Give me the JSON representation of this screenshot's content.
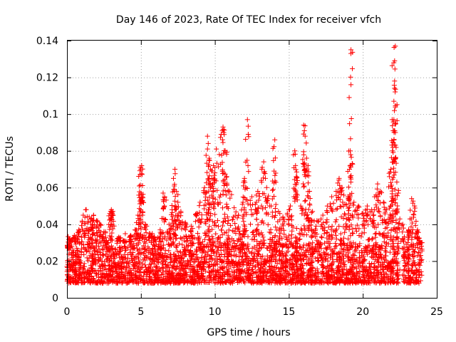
{
  "chart_data": {
    "type": "scatter",
    "title": "Day 146 of 2023, Rate Of TEC Index for receiver vfch",
    "xlabel": "GPS time / hours",
    "ylabel": "ROTI / TECUs",
    "xlim": [
      0,
      25
    ],
    "ylim": [
      0,
      0.14
    ],
    "xticks": [
      0,
      5,
      10,
      15,
      20,
      25
    ],
    "yticks": [
      0,
      0.02,
      0.04,
      0.06,
      0.08,
      0.1,
      0.12,
      0.14
    ],
    "xtick_labels": [
      "0",
      "5",
      "10",
      "15",
      "20",
      "25"
    ],
    "ytick_labels": [
      "0",
      "0.02",
      "0.04",
      "0.06",
      "0.08",
      "0.1",
      "0.12",
      "0.14"
    ],
    "grid": true,
    "marker": "+",
    "color": "#ff0000",
    "x_range_hours": [
      0,
      24
    ],
    "dense_band": {
      "low": 0.008,
      "high": 0.03
    },
    "series": [
      {
        "name": "ROTI",
        "points": [
          [
            0.1,
            0.027
          ],
          [
            0.2,
            0.032
          ],
          [
            0.5,
            0.034
          ],
          [
            0.8,
            0.037
          ],
          [
            1.1,
            0.045
          ],
          [
            1.3,
            0.048
          ],
          [
            1.5,
            0.044
          ],
          [
            1.7,
            0.04
          ],
          [
            1.8,
            0.045
          ],
          [
            2.0,
            0.042
          ],
          [
            2.2,
            0.04
          ],
          [
            2.5,
            0.036
          ],
          [
            2.7,
            0.03
          ],
          [
            2.95,
            0.047
          ],
          [
            3.0,
            0.048
          ],
          [
            3.1,
            0.047
          ],
          [
            3.5,
            0.033
          ],
          [
            3.9,
            0.031
          ],
          [
            4.3,
            0.034
          ],
          [
            4.6,
            0.037
          ],
          [
            4.8,
            0.045
          ],
          [
            4.95,
            0.071
          ],
          [
            5.0,
            0.07
          ],
          [
            5.05,
            0.072
          ],
          [
            5.0,
            0.057
          ],
          [
            5.1,
            0.055
          ],
          [
            5.3,
            0.04
          ],
          [
            5.6,
            0.035
          ],
          [
            5.9,
            0.033
          ],
          [
            6.3,
            0.037
          ],
          [
            6.5,
            0.057
          ],
          [
            6.6,
            0.055
          ],
          [
            6.9,
            0.04
          ],
          [
            7.1,
            0.048
          ],
          [
            7.2,
            0.065
          ],
          [
            7.3,
            0.07
          ],
          [
            7.4,
            0.058
          ],
          [
            7.5,
            0.052
          ],
          [
            7.7,
            0.047
          ],
          [
            8.0,
            0.041
          ],
          [
            8.4,
            0.039
          ],
          [
            8.8,
            0.046
          ],
          [
            9.0,
            0.052
          ],
          [
            9.3,
            0.06
          ],
          [
            9.5,
            0.088
          ],
          [
            9.5,
            0.081
          ],
          [
            9.55,
            0.084
          ],
          [
            9.6,
            0.075
          ],
          [
            9.7,
            0.07
          ],
          [
            9.8,
            0.065
          ],
          [
            9.9,
            0.072
          ],
          [
            10.0,
            0.068
          ],
          [
            10.1,
            0.081
          ],
          [
            10.3,
            0.078
          ],
          [
            10.5,
            0.091
          ],
          [
            10.55,
            0.093
          ],
          [
            10.6,
            0.09
          ],
          [
            10.7,
            0.08
          ],
          [
            10.8,
            0.066
          ],
          [
            11.0,
            0.058
          ],
          [
            11.3,
            0.049
          ],
          [
            11.6,
            0.045
          ],
          [
            11.9,
            0.052
          ],
          [
            12.0,
            0.065
          ],
          [
            12.1,
            0.06
          ],
          [
            12.2,
            0.097
          ],
          [
            12.5,
            0.055
          ],
          [
            12.8,
            0.052
          ],
          [
            12.9,
            0.058
          ],
          [
            13.2,
            0.071
          ],
          [
            13.3,
            0.074
          ],
          [
            13.5,
            0.06
          ],
          [
            13.8,
            0.05
          ],
          [
            14.0,
            0.069
          ],
          [
            14.05,
            0.086
          ],
          [
            14.3,
            0.047
          ],
          [
            14.6,
            0.044
          ],
          [
            14.9,
            0.046
          ],
          [
            15.1,
            0.05
          ],
          [
            15.4,
            0.08
          ],
          [
            15.45,
            0.072
          ],
          [
            15.5,
            0.066
          ],
          [
            15.8,
            0.05
          ],
          [
            16.0,
            0.094
          ],
          [
            16.05,
            0.091
          ],
          [
            16.1,
            0.088
          ],
          [
            16.2,
            0.076
          ],
          [
            16.3,
            0.072
          ],
          [
            16.4,
            0.058
          ],
          [
            16.6,
            0.047
          ],
          [
            16.9,
            0.042
          ],
          [
            17.3,
            0.045
          ],
          [
            17.6,
            0.05
          ],
          [
            17.9,
            0.055
          ],
          [
            18.2,
            0.058
          ],
          [
            18.4,
            0.065
          ],
          [
            18.6,
            0.06
          ],
          [
            18.8,
            0.051
          ],
          [
            19.0,
            0.055
          ],
          [
            19.1,
            0.07
          ],
          [
            19.15,
            0.08
          ],
          [
            19.2,
            0.116
          ],
          [
            19.2,
            0.135
          ],
          [
            19.4,
            0.052
          ],
          [
            19.7,
            0.05
          ],
          [
            20.0,
            0.046
          ],
          [
            20.3,
            0.05
          ],
          [
            20.6,
            0.048
          ],
          [
            20.8,
            0.055
          ],
          [
            21.0,
            0.062
          ],
          [
            21.2,
            0.058
          ],
          [
            21.4,
            0.052
          ],
          [
            21.6,
            0.048
          ],
          [
            21.8,
            0.066
          ],
          [
            21.9,
            0.07
          ],
          [
            22.0,
            0.08
          ],
          [
            22.05,
            0.091
          ],
          [
            22.1,
            0.097
          ],
          [
            22.1,
            0.107
          ],
          [
            22.15,
            0.118
          ],
          [
            22.1,
            0.128
          ],
          [
            22.15,
            0.129
          ],
          [
            22.2,
            0.137
          ],
          [
            22.3,
            0.063
          ],
          [
            22.4,
            0.057
          ],
          [
            22.7,
            0.04
          ],
          [
            23.1,
            0.037
          ],
          [
            23.3,
            0.054
          ],
          [
            23.5,
            0.05
          ],
          [
            23.7,
            0.037
          ],
          [
            23.9,
            0.03
          ]
        ]
      }
    ]
  }
}
